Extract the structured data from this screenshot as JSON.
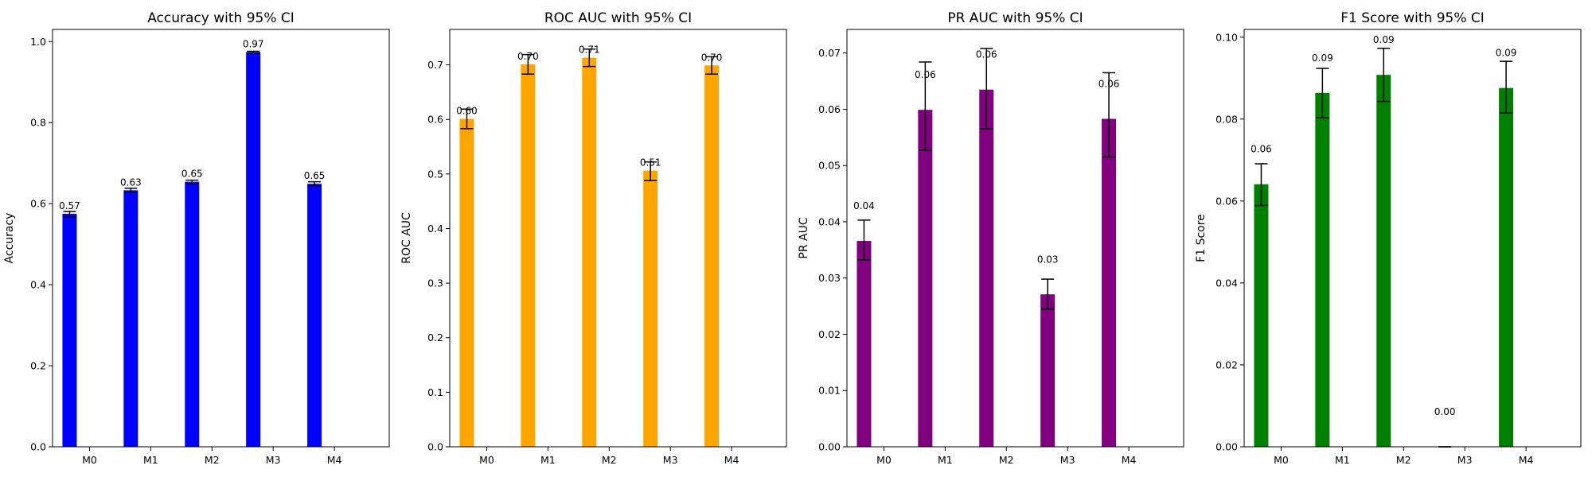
{
  "chart_data": [
    {
      "type": "bar",
      "title": "Accuracy with 95% CI",
      "xlabel": "",
      "ylabel": "Accuracy",
      "color": "#0000ff",
      "categories": [
        "M0",
        "M1",
        "M2",
        "M3",
        "M4"
      ],
      "values": [
        0.575,
        0.633,
        0.654,
        0.974,
        0.649
      ],
      "ci_low": [
        0.568,
        0.628,
        0.649,
        0.972,
        0.644
      ],
      "ci_high": [
        0.581,
        0.638,
        0.658,
        0.976,
        0.654
      ],
      "data_labels": [
        "0.57",
        "0.63",
        "0.65",
        "0.97",
        "0.65"
      ],
      "ylim": [
        0,
        1.03
      ],
      "yticks": [
        "0.0",
        "0.2",
        "0.4",
        "0.6",
        "0.8",
        "1.0"
      ],
      "grid": false,
      "legend": false
    },
    {
      "type": "bar",
      "title": "ROC AUC with 95% CI",
      "xlabel": "",
      "ylabel": "ROC AUC",
      "color": "#ffa500",
      "categories": [
        "M0",
        "M1",
        "M2",
        "M3",
        "M4"
      ],
      "values": [
        0.601,
        0.701,
        0.713,
        0.506,
        0.699
      ],
      "ci_low": [
        0.583,
        0.683,
        0.697,
        0.488,
        0.683
      ],
      "ci_high": [
        0.619,
        0.719,
        0.729,
        0.522,
        0.715
      ],
      "data_labels": [
        "0.60",
        "0.70",
        "0.71",
        "0.51",
        "0.70"
      ],
      "ylim": [
        0,
        0.765
      ],
      "yticks": [
        "0.0",
        "0.1",
        "0.2",
        "0.3",
        "0.4",
        "0.5",
        "0.6",
        "0.7"
      ],
      "grid": false,
      "legend": false
    },
    {
      "type": "bar",
      "title": "PR AUC with 95% CI",
      "xlabel": "",
      "ylabel": "PR AUC",
      "color": "#800080",
      "categories": [
        "M0",
        "M1",
        "M2",
        "M3",
        "M4"
      ],
      "values": [
        0.0366,
        0.0599,
        0.0635,
        0.0271,
        0.0583
      ],
      "ci_low": [
        0.0332,
        0.0527,
        0.0565,
        0.0245,
        0.0515
      ],
      "ci_high": [
        0.0403,
        0.0684,
        0.0708,
        0.0298,
        0.0665
      ],
      "data_labels": [
        "0.04",
        "0.06",
        "0.06",
        "0.03",
        "0.06"
      ],
      "ylim": [
        0,
        0.0742
      ],
      "yticks": [
        "0.00",
        "0.01",
        "0.02",
        "0.03",
        "0.04",
        "0.05",
        "0.06",
        "0.07"
      ],
      "grid": false,
      "legend": false
    },
    {
      "type": "bar",
      "title": "F1 Score with 95% CI",
      "xlabel": "",
      "ylabel": "F1 Score",
      "color": "#008000",
      "categories": [
        "M0",
        "M1",
        "M2",
        "M3",
        "M4"
      ],
      "values": [
        0.0641,
        0.0864,
        0.0908,
        0.0,
        0.0876
      ],
      "ci_low": [
        0.0589,
        0.0803,
        0.0843,
        0.0,
        0.0815
      ],
      "ci_high": [
        0.0691,
        0.0924,
        0.0973,
        0.0,
        0.0941
      ],
      "data_labels": [
        "0.06",
        "0.09",
        "0.09",
        "0.00",
        "0.09"
      ],
      "ylim": [
        0,
        0.1019
      ],
      "yticks": [
        "0.00",
        "0.02",
        "0.04",
        "0.06",
        "0.08",
        "0.10"
      ],
      "grid": false,
      "legend": false
    }
  ]
}
